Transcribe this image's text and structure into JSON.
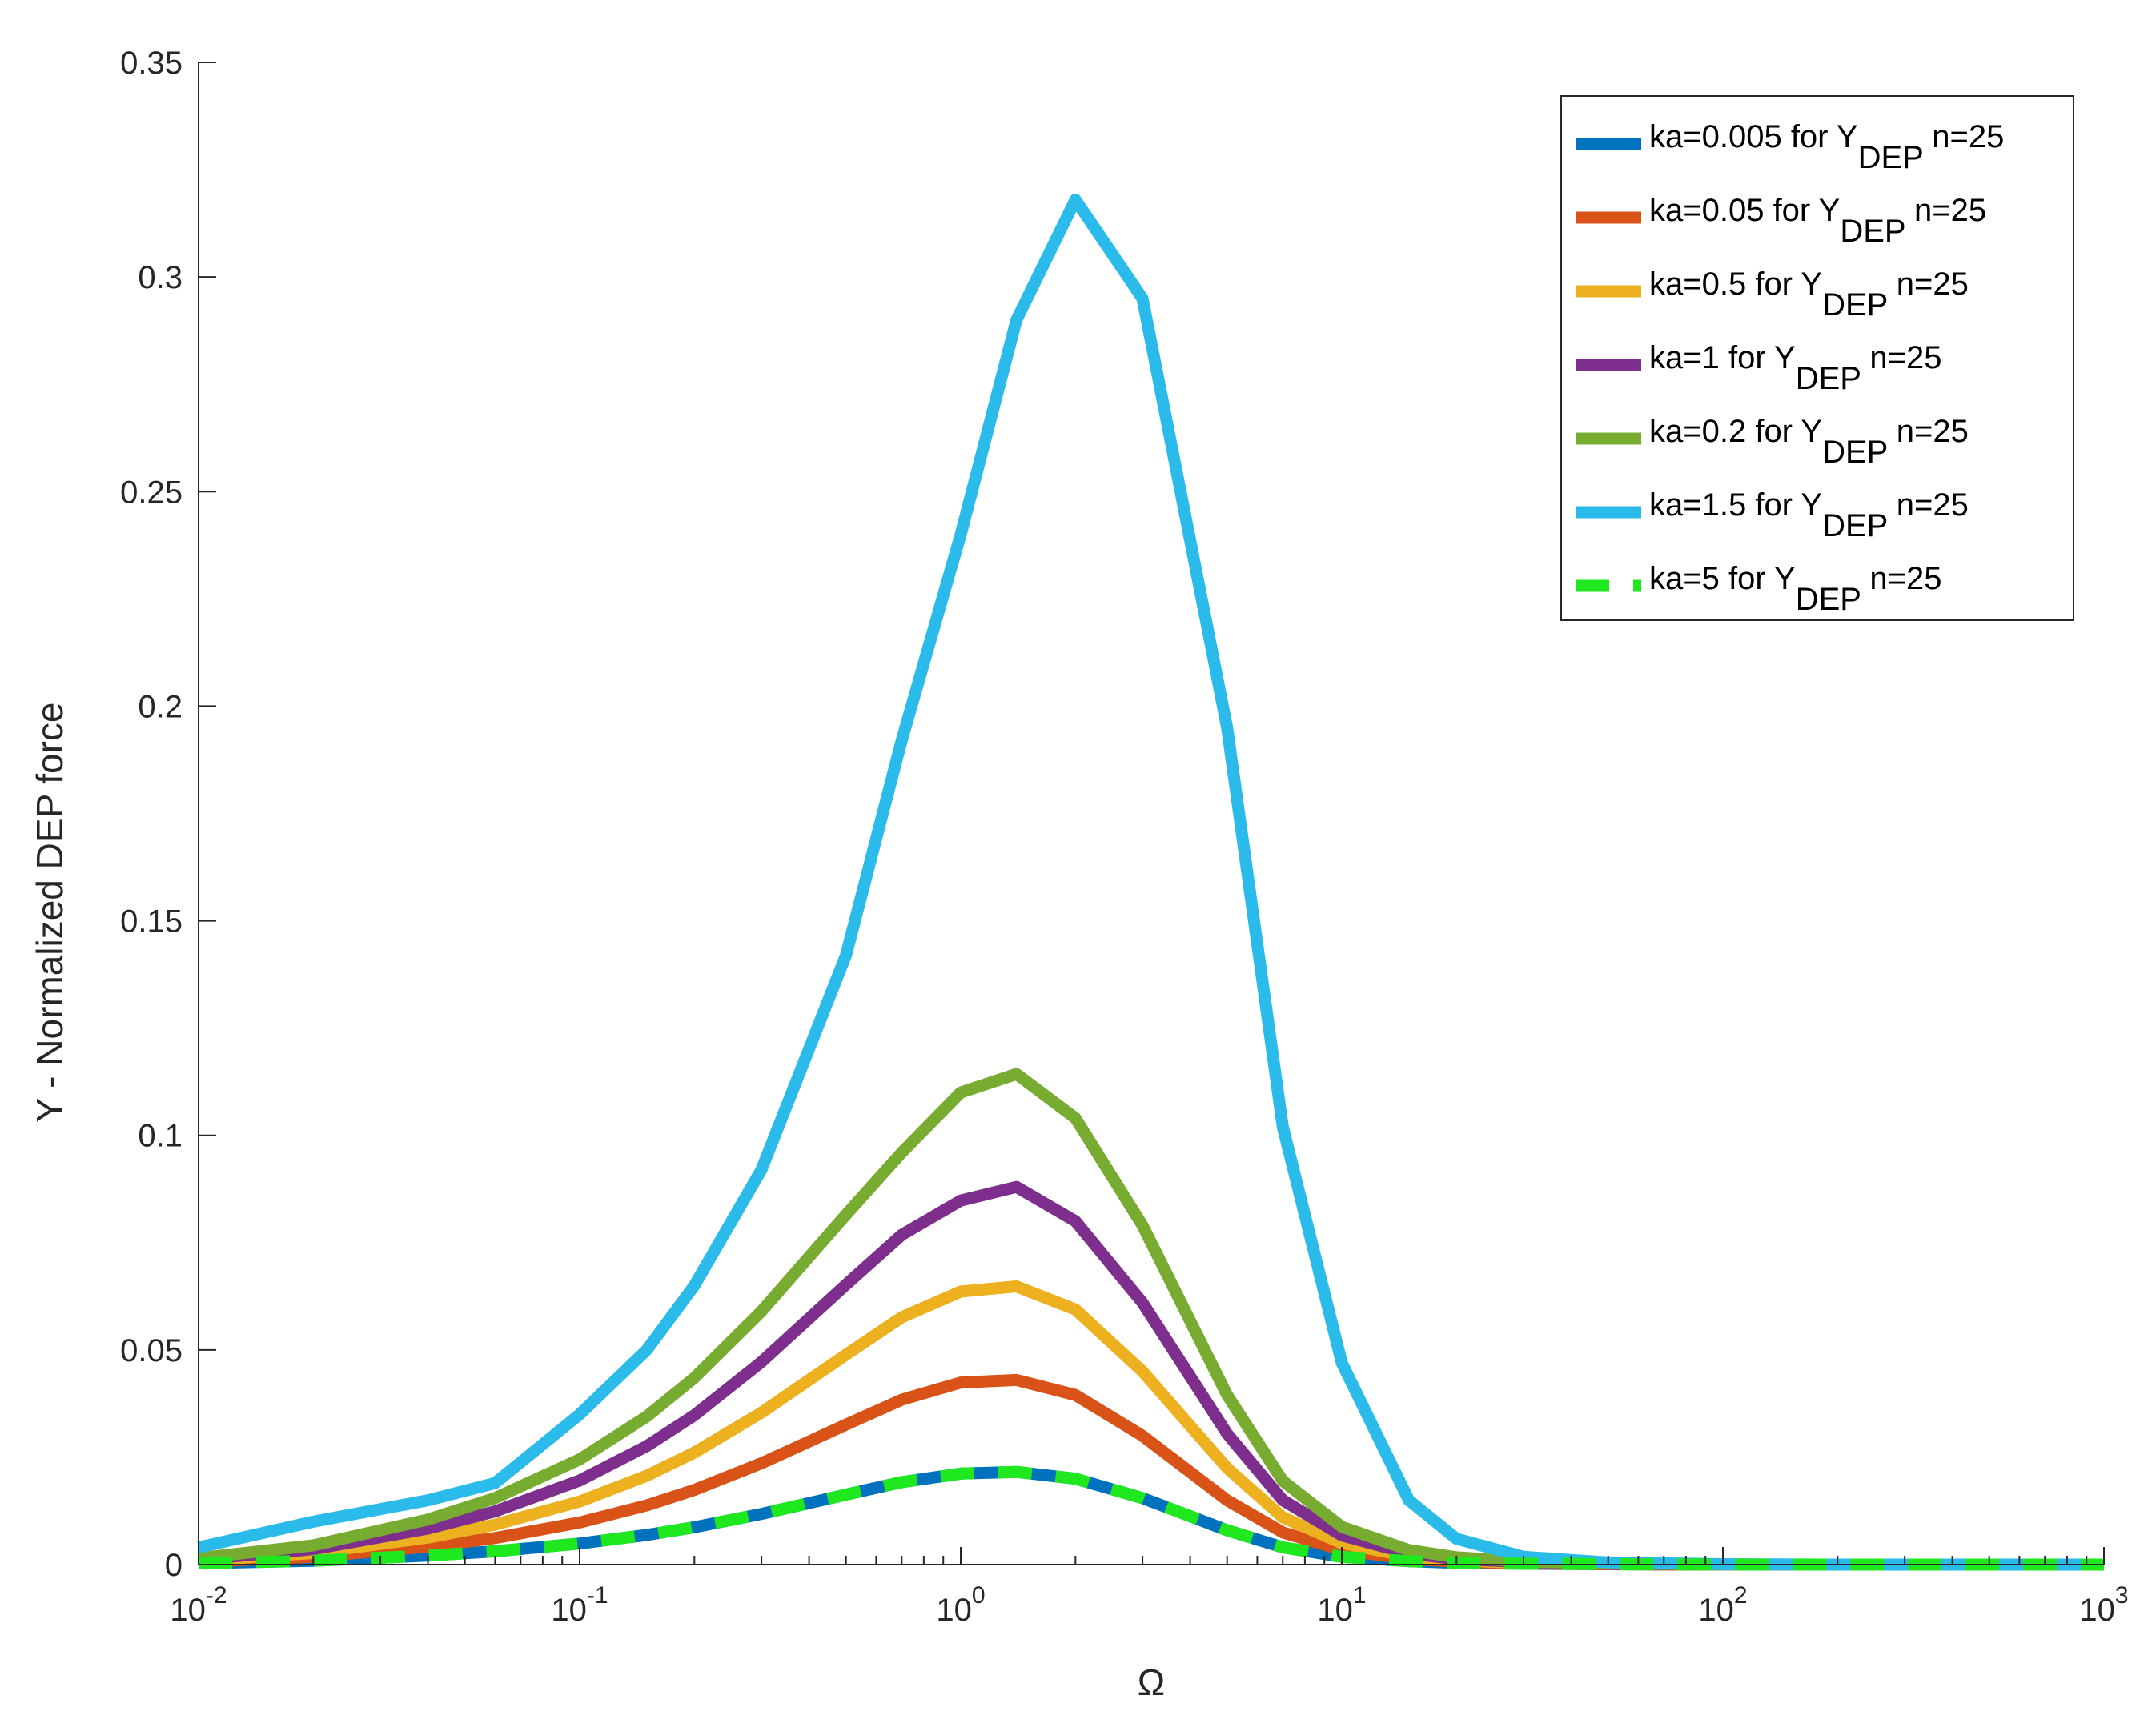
{
  "chart_data": {
    "type": "line",
    "title": "",
    "xlabel": "Ω",
    "ylabel": "Y - Normalized DEP force",
    "xscale": "log",
    "xlim": [
      0.01,
      1000
    ],
    "ylim": [
      0,
      0.35
    ],
    "x_ticks": [
      {
        "value": 0.01,
        "base": "10",
        "exp": "-2"
      },
      {
        "value": 0.1,
        "base": "10",
        "exp": "-1"
      },
      {
        "value": 1,
        "base": "10",
        "exp": "0"
      },
      {
        "value": 10,
        "base": "10",
        "exp": "1"
      },
      {
        "value": 100,
        "base": "10",
        "exp": "2"
      },
      {
        "value": 1000,
        "base": "10",
        "exp": "3"
      }
    ],
    "y_ticks": [
      {
        "value": 0,
        "label": "0"
      },
      {
        "value": 0.05,
        "label": "0.05"
      },
      {
        "value": 0.1,
        "label": "0.1"
      },
      {
        "value": 0.15,
        "label": "0.15"
      },
      {
        "value": 0.2,
        "label": "0.2"
      },
      {
        "value": 0.25,
        "label": "0.25"
      },
      {
        "value": 0.3,
        "label": "0.3"
      },
      {
        "value": 0.35,
        "label": "0.35"
      }
    ],
    "grid": false,
    "legend_position": "top-right",
    "x": [
      0.01,
      0.02,
      0.04,
      0.06,
      0.1,
      0.15,
      0.2,
      0.3,
      0.5,
      0.7,
      1,
      1.4,
      2,
      3,
      5,
      7,
      10,
      15,
      20,
      30,
      50,
      100,
      200,
      500,
      1000
    ],
    "series": [
      {
        "name_main": "ka=0.005 for Y",
        "name_sub": "DEP",
        "name_tail": " n=25",
        "color": "#0072BD",
        "dashed": false,
        "values": [
          0.0003,
          0.0009,
          0.0021,
          0.0031,
          0.0049,
          0.0069,
          0.0087,
          0.0118,
          0.0163,
          0.0192,
          0.0212,
          0.0216,
          0.02,
          0.0155,
          0.008,
          0.004,
          0.0018,
          0.0008,
          0.0004,
          0.0002,
          0.0001,
          0.0,
          0.0,
          0.0,
          0.0
        ]
      },
      {
        "name_main": "ka=0.05 for Y",
        "name_sub": "DEP",
        "name_tail": " n=25",
        "color": "#D95319",
        "dashed": false,
        "values": [
          0.0006,
          0.0018,
          0.0042,
          0.0062,
          0.0098,
          0.0138,
          0.0174,
          0.0236,
          0.0326,
          0.0384,
          0.0424,
          0.043,
          0.0395,
          0.03,
          0.015,
          0.0075,
          0.0034,
          0.0013,
          0.0007,
          0.0003,
          0.0001,
          0.0,
          0.0,
          0.0,
          0.0
        ]
      },
      {
        "name_main": "ka=0.5 for Y",
        "name_sub": "DEP",
        "name_tail": " n=25",
        "color": "#EDB120",
        "dashed": false,
        "values": [
          0.0009,
          0.0027,
          0.0063,
          0.0093,
          0.0147,
          0.0207,
          0.0261,
          0.0354,
          0.0489,
          0.0576,
          0.0636,
          0.0648,
          0.0594,
          0.045,
          0.0225,
          0.011,
          0.005,
          0.0019,
          0.001,
          0.0004,
          0.0002,
          0.0,
          0.0,
          0.0,
          0.0
        ]
      },
      {
        "name_main": "ka=1 for Y",
        "name_sub": "DEP",
        "name_tail": " n=25",
        "color": "#7E2F8E",
        "dashed": false,
        "values": [
          0.0012,
          0.0036,
          0.0084,
          0.0124,
          0.0196,
          0.0276,
          0.0348,
          0.0472,
          0.0652,
          0.0768,
          0.0848,
          0.088,
          0.08,
          0.061,
          0.0305,
          0.015,
          0.0068,
          0.0026,
          0.0013,
          0.0006,
          0.0002,
          0.0,
          0.0,
          0.0,
          0.0
        ]
      },
      {
        "name_main": "ka=0.2 for Y",
        "name_sub": "DEP",
        "name_tail": " n=25",
        "color": "#77AC30",
        "dashed": false,
        "values": [
          0.0015,
          0.0045,
          0.0105,
          0.0155,
          0.0245,
          0.0345,
          0.0435,
          0.059,
          0.0815,
          0.096,
          0.11,
          0.1143,
          0.104,
          0.079,
          0.0395,
          0.0195,
          0.0088,
          0.0034,
          0.0017,
          0.0007,
          0.0003,
          0.0,
          0.0,
          0.0,
          0.0
        ]
      },
      {
        "name_main": "ka=1.5 for Y",
        "name_sub": "DEP",
        "name_tail": " n=25",
        "color": "#2BBBEA",
        "dashed": false,
        "values": [
          0.004,
          0.01,
          0.015,
          0.019,
          0.035,
          0.05,
          0.065,
          0.092,
          0.142,
          0.192,
          0.24,
          0.29,
          0.318,
          0.295,
          0.195,
          0.102,
          0.047,
          0.015,
          0.006,
          0.0018,
          0.0005,
          0.0001,
          0.0,
          0.0,
          0.0
        ]
      },
      {
        "name_main": "ka=5 for Y",
        "name_sub": "DEP",
        "name_tail": " n=25",
        "color": "#1FE81F",
        "dashed": true,
        "values": [
          0.0003,
          0.0009,
          0.0021,
          0.0031,
          0.0049,
          0.0069,
          0.0087,
          0.0118,
          0.0163,
          0.0192,
          0.0212,
          0.0216,
          0.02,
          0.0155,
          0.008,
          0.004,
          0.0018,
          0.0008,
          0.0004,
          0.0002,
          0.0001,
          0.0,
          0.0,
          0.0,
          0.0
        ]
      }
    ]
  }
}
